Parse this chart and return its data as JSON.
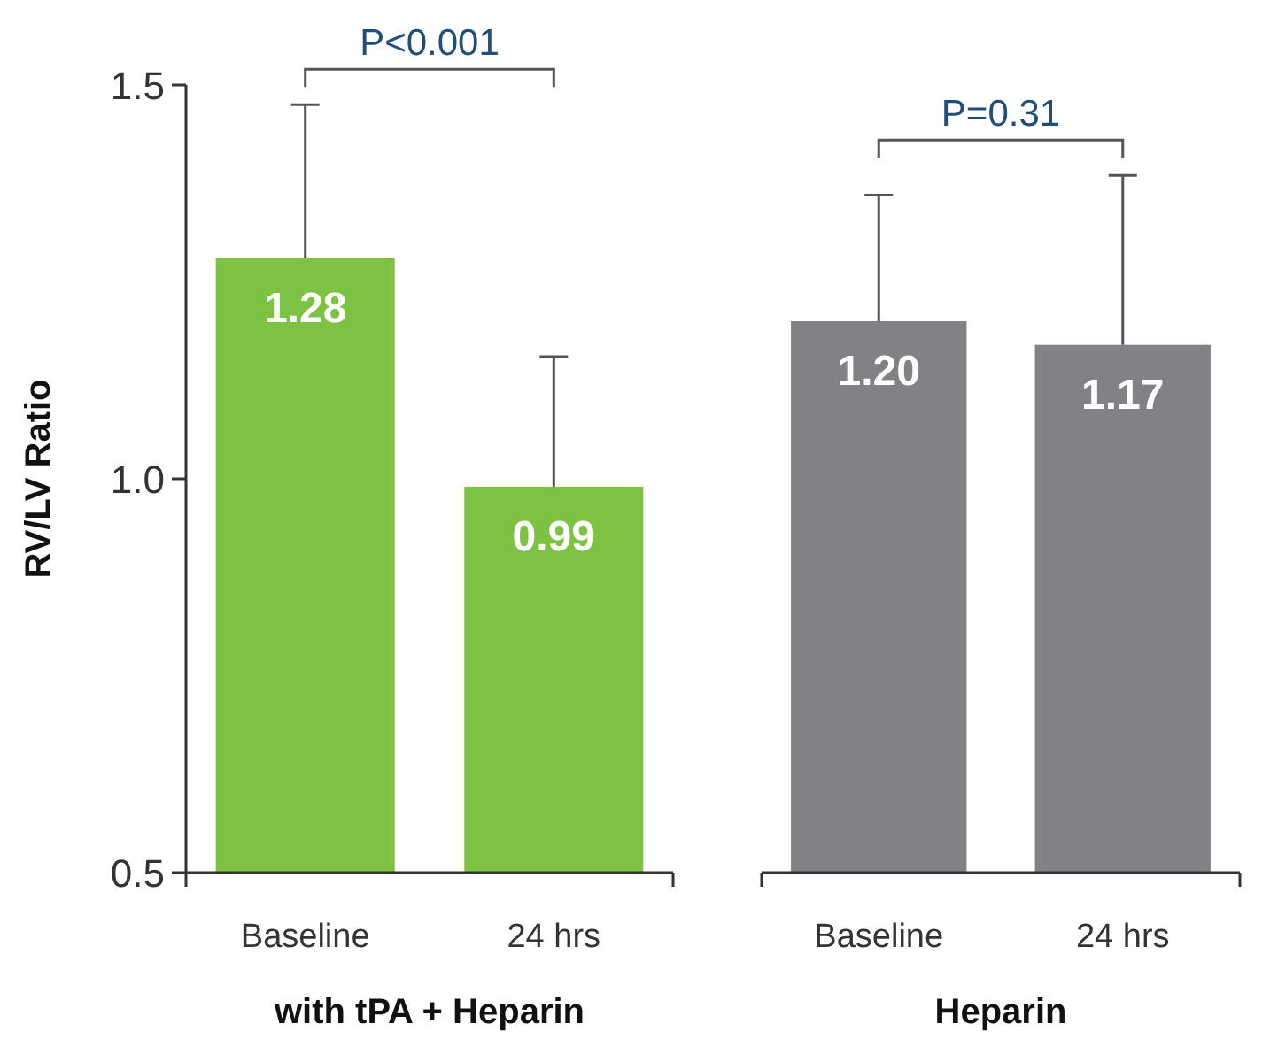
{
  "chart_data": [
    {
      "type": "bar",
      "xlabel": "with tPA + Heparin",
      "ylabel": "RV/LV Ratio",
      "categories": [
        "Baseline",
        "24 hrs"
      ],
      "values": [
        1.28,
        0.99
      ],
      "value_labels": [
        "1.28",
        "0.99"
      ],
      "color": "#7dc242",
      "errors": [
        [
          1.28,
          1.475
        ],
        [
          0.99,
          1.155
        ]
      ],
      "ylim": [
        0.5,
        1.5
      ],
      "yticks": [
        0.5,
        {
          "value": 1,
          "label": "1.0"
        },
        1.5
      ],
      "annotations": [
        "P<0.001"
      ]
    },
    {
      "type": "bar",
      "xlabel": "Heparin",
      "categories": [
        "Baseline",
        "24 hrs"
      ],
      "values": [
        1.2,
        1.17
      ],
      "value_labels": [
        "1.20",
        "1.17"
      ],
      "color": "#808285",
      "errors": [
        [
          1.2,
          1.36
        ],
        [
          1.17,
          1.385
        ]
      ],
      "ylim": [
        0.5,
        1.5
      ],
      "tick_labels": "x",
      "annotations": [
        "P=0.31"
      ]
    }
  ]
}
